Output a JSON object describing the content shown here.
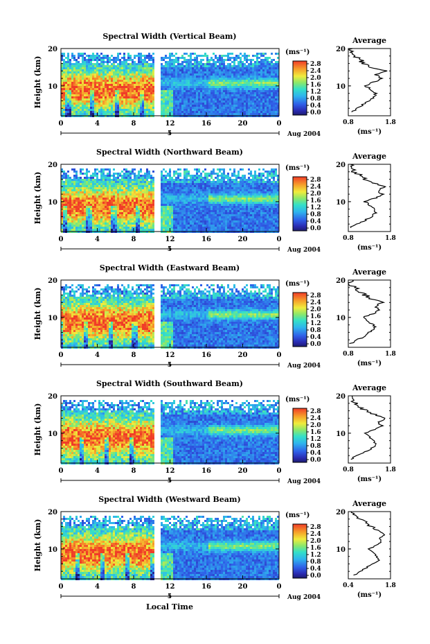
{
  "chart_data": {
    "type": "heatmap",
    "colorbar": {
      "unit_label": "(ms⁻¹)",
      "ticks": [
        "2.8",
        "2.4",
        "2.0",
        "1.6",
        "1.2",
        "0.8",
        "0.4",
        "0.0"
      ],
      "range": [
        0.0,
        3.0
      ]
    },
    "shared": {
      "xlabel": "Local Time",
      "x_ticks": [
        "0",
        "4",
        "8",
        "12",
        "16",
        "20",
        "0"
      ],
      "date_label": "Aug 2004",
      "date_day": "5",
      "ylabel": "Height (km)",
      "y_ticks": [
        "10",
        "20"
      ],
      "ylim": [
        2,
        20
      ],
      "xlim": [
        0,
        24
      ]
    },
    "panels": [
      {
        "title": "Spectral Width (Vertical Beam)",
        "avg_title": "Average",
        "avg_xticks": [
          "0.8",
          "1.8"
        ],
        "avg_xlabel": "(ms⁻¹)",
        "avg_ylim": [
          2,
          20
        ],
        "avg_profile": [
          [
            0.9,
            3
          ],
          [
            1.0,
            4
          ],
          [
            1.15,
            5
          ],
          [
            1.3,
            6
          ],
          [
            1.4,
            7
          ],
          [
            1.45,
            8
          ],
          [
            1.35,
            9
          ],
          [
            1.2,
            10
          ],
          [
            1.4,
            11
          ],
          [
            1.6,
            12
          ],
          [
            1.45,
            13
          ],
          [
            1.7,
            14
          ],
          [
            1.3,
            15
          ],
          [
            1.15,
            16
          ],
          [
            1.1,
            17
          ],
          [
            0.95,
            18
          ],
          [
            0.85,
            19
          ],
          [
            0.9,
            20
          ]
        ]
      },
      {
        "title": "Spectral Width (Northward Beam)",
        "avg_title": "Average",
        "avg_xticks": [
          "0.8",
          "1.8"
        ],
        "avg_xlabel": "(ms⁻¹)",
        "avg_ylim": [
          2,
          20
        ],
        "avg_profile": [
          [
            0.85,
            3
          ],
          [
            1.0,
            4
          ],
          [
            1.2,
            5
          ],
          [
            1.35,
            6
          ],
          [
            1.45,
            7
          ],
          [
            1.4,
            8
          ],
          [
            1.3,
            9
          ],
          [
            1.2,
            10
          ],
          [
            1.45,
            11
          ],
          [
            1.6,
            12
          ],
          [
            1.5,
            13
          ],
          [
            1.65,
            14
          ],
          [
            1.4,
            15
          ],
          [
            1.2,
            16
          ],
          [
            1.1,
            17
          ],
          [
            0.95,
            18
          ],
          [
            0.9,
            19
          ],
          [
            0.85,
            20
          ]
        ]
      },
      {
        "title": "Spectral Width (Eastward Beam)",
        "avg_title": "Average",
        "avg_xticks": [
          "0.8",
          "1.8"
        ],
        "avg_xlabel": "(ms⁻¹)",
        "avg_ylim": [
          2,
          20
        ],
        "avg_profile": [
          [
            0.85,
            3
          ],
          [
            1.0,
            4
          ],
          [
            1.2,
            5
          ],
          [
            1.3,
            6
          ],
          [
            1.45,
            7
          ],
          [
            1.4,
            8
          ],
          [
            1.25,
            9
          ],
          [
            1.15,
            10
          ],
          [
            1.4,
            11
          ],
          [
            1.55,
            12
          ],
          [
            1.45,
            13
          ],
          [
            1.6,
            14
          ],
          [
            1.35,
            15
          ],
          [
            1.2,
            16
          ],
          [
            1.05,
            17
          ],
          [
            0.95,
            18
          ],
          [
            0.85,
            19
          ],
          [
            0.9,
            20
          ]
        ]
      },
      {
        "title": "Spectral Width (Southward Beam)",
        "avg_title": "Average",
        "avg_xticks": [
          "0.8",
          "1.8"
        ],
        "avg_xlabel": "(ms⁻¹)",
        "avg_ylim": [
          2,
          20
        ],
        "avg_profile": [
          [
            0.85,
            3
          ],
          [
            1.0,
            4
          ],
          [
            1.2,
            5
          ],
          [
            1.35,
            6
          ],
          [
            1.45,
            7
          ],
          [
            1.4,
            8
          ],
          [
            1.3,
            9
          ],
          [
            1.2,
            10
          ],
          [
            1.45,
            11
          ],
          [
            1.6,
            12
          ],
          [
            1.5,
            13
          ],
          [
            1.7,
            14
          ],
          [
            1.4,
            15
          ],
          [
            1.2,
            16
          ],
          [
            1.05,
            17
          ],
          [
            0.95,
            18
          ],
          [
            0.85,
            19
          ],
          [
            0.9,
            20
          ]
        ]
      },
      {
        "title": "Spectral Width (Westward Beam)",
        "avg_title": "Average",
        "avg_xticks": [
          "0.4",
          "1.8"
        ],
        "avg_xlabel": "(ms⁻¹)",
        "avg_ylim": [
          2,
          20
        ],
        "avg_profile": [
          [
            0.6,
            3
          ],
          [
            0.8,
            4
          ],
          [
            1.0,
            5
          ],
          [
            1.2,
            6
          ],
          [
            1.4,
            7
          ],
          [
            1.35,
            8
          ],
          [
            1.2,
            9
          ],
          [
            1.1,
            10
          ],
          [
            1.35,
            11
          ],
          [
            1.5,
            12
          ],
          [
            1.45,
            13
          ],
          [
            1.6,
            14
          ],
          [
            1.35,
            15
          ],
          [
            1.15,
            16
          ],
          [
            1.0,
            17
          ],
          [
            0.8,
            18
          ],
          [
            0.6,
            19
          ],
          [
            0.5,
            20
          ]
        ]
      }
    ]
  }
}
